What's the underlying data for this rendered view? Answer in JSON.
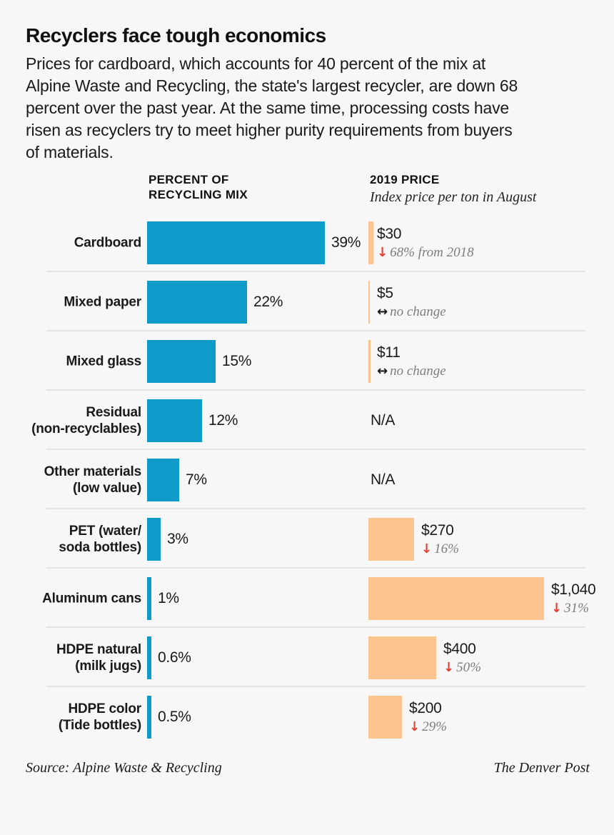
{
  "background": "#f7f7f7",
  "colors": {
    "mix_bar": "#0f9bca",
    "price_bar": "#fcc48f",
    "down_arrow": "#e53e30",
    "text": "#1a1a1a",
    "muted_text": "#7d7d7d",
    "divider": "#e3e3e3"
  },
  "icons": {
    "down_arrow_glyph": "↓",
    "no_change_arrow_glyph": "↔"
  },
  "header": {
    "title": "Recyclers face tough economics",
    "intro": "Prices for cardboard, which accounts for 40 percent of the mix at\nAlpine Waste and Recycling, the state's largest recycler, are down 68\npercent over the past year. At the same time, processing costs have\nrisen as recyclers try to meet higher purity requirements from buyers\nof materials."
  },
  "columns": {
    "mix_header": "PERCENT OF\nRECYCLING MIX",
    "price_header": "2019 PRICE",
    "price_subheader": "Index price per ton in August"
  },
  "chart_data": {
    "type": "bar",
    "orientation": "horizontal",
    "categories": [
      "Cardboard",
      "Mixed paper",
      "Mixed glass",
      "Residual (non-recyclables)",
      "Other materials (low value)",
      "PET (water/soda bottles)",
      "Aluminum cans",
      "HDPE natural (milk jugs)",
      "HDPE color (Tide bottles)"
    ],
    "series": [
      {
        "name": "Percent of recycling mix",
        "unit": "%",
        "values": [
          39,
          22,
          15,
          12,
          7,
          3,
          1,
          0.6,
          0.5
        ]
      },
      {
        "name": "2019 price, index price per ton in August",
        "unit": "USD",
        "values": [
          30,
          5,
          11,
          null,
          null,
          270,
          1040,
          400,
          200
        ]
      }
    ],
    "annotations": [
      "down 68% from 2018",
      "no change",
      "no change",
      "N/A",
      "N/A",
      "down 16%",
      "down 31%",
      "down 50%",
      "down 29%"
    ],
    "rows": [
      {
        "label": "Cardboard",
        "mix_pct": 39,
        "mix_label": "39%",
        "price": 30,
        "price_label": "$30",
        "change_dir": "down",
        "change_text": "68% from 2018"
      },
      {
        "label": "Mixed paper",
        "mix_pct": 22,
        "mix_label": "22%",
        "price": 5,
        "price_label": "$5",
        "change_dir": "none",
        "change_text": "no change"
      },
      {
        "label": "Mixed glass",
        "mix_pct": 15,
        "mix_label": "15%",
        "price": 11,
        "price_label": "$11",
        "change_dir": "none",
        "change_text": "no change"
      },
      {
        "label": "Residual\n(non-recyclables)",
        "mix_pct": 12,
        "mix_label": "12%",
        "price": null,
        "price_label": "N/A",
        "change_dir": null,
        "change_text": null
      },
      {
        "label": "Other materials\n(low value)",
        "mix_pct": 7,
        "mix_label": "7%",
        "price": null,
        "price_label": "N/A",
        "change_dir": null,
        "change_text": null
      },
      {
        "label": "PET (water/\nsoda bottles)",
        "mix_pct": 3,
        "mix_label": "3%",
        "price": 270,
        "price_label": "$270",
        "change_dir": "down",
        "change_text": "16%"
      },
      {
        "label": "Aluminum cans",
        "mix_pct": 1,
        "mix_label": "1%",
        "price": 1040,
        "price_label": "$1,040",
        "change_dir": "down",
        "change_text": "31%"
      },
      {
        "label": "HDPE natural\n(milk jugs)",
        "mix_pct": 0.6,
        "mix_label": "0.6%",
        "price": 400,
        "price_label": "$400",
        "change_dir": "down",
        "change_text": "50%"
      },
      {
        "label": "HDPE color\n(Tide bottles)",
        "mix_pct": 0.5,
        "mix_label": "0.5%",
        "price": 200,
        "price_label": "$200",
        "change_dir": "down",
        "change_text": "29%"
      }
    ]
  },
  "footer": {
    "source": "Source: Alpine Waste & Recycling",
    "credit": "The Denver Post"
  }
}
